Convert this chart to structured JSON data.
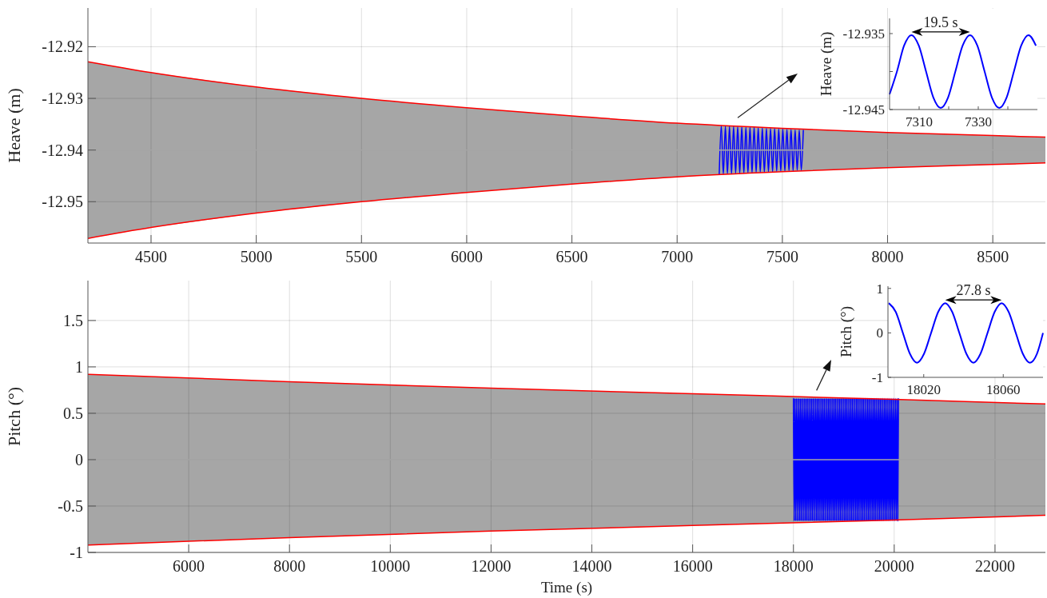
{
  "chart_data": [
    {
      "type": "line",
      "ylabel": "Heave (m)",
      "xlim": [
        4200,
        8750
      ],
      "xticks": [
        4500,
        5000,
        5500,
        6000,
        6500,
        7000,
        7500,
        8000,
        8500
      ],
      "ylim": [
        -12.958,
        -12.9125
      ],
      "yticks": [
        -12.92,
        -12.93,
        -12.94,
        -12.95
      ],
      "grid": true,
      "series": [
        {
          "color": "#a6a6a6",
          "x": [
            4200,
            4500,
            5000,
            5500,
            6000,
            6500,
            7000,
            7500,
            8000,
            8500,
            8750
          ],
          "values": [
            -12.94,
            -12.94,
            -12.94,
            -12.94,
            -12.94,
            -12.94,
            -12.94,
            -12.94,
            -12.94,
            -12.94,
            -12.94
          ],
          "lower": [
            -12.9571,
            -12.955,
            -12.9522,
            -12.95,
            -12.9482,
            -12.9466,
            -12.9452,
            -12.9442,
            -12.9434,
            -12.9428,
            -12.9425
          ],
          "upper": [
            -12.9229,
            -12.925,
            -12.9278,
            -12.93,
            -12.9318,
            -12.9334,
            -12.9348,
            -12.9358,
            -12.9366,
            -12.9372,
            -12.9375
          ]
        },
        {
          "color": "#ff0000",
          "x": [
            4200,
            4500,
            5000,
            5500,
            6000,
            6500,
            7000,
            7500,
            8000,
            8500,
            8750
          ],
          "values": [
            -12.9229,
            -12.925,
            -12.9278,
            -12.93,
            -12.9318,
            -12.9334,
            -12.9348,
            -12.9358,
            -12.9366,
            -12.9372,
            -12.9375
          ]
        },
        {
          "color": "#ff0000",
          "x": [
            4200,
            4500,
            5000,
            5500,
            6000,
            6500,
            7000,
            7500,
            8000,
            8500,
            8750
          ],
          "values": [
            -12.9571,
            -12.955,
            -12.9522,
            -12.95,
            -12.9482,
            -12.9466,
            -12.9452,
            -12.9442,
            -12.9434,
            -12.9428,
            -12.9425
          ]
        },
        {
          "color": "#0000ff",
          "x": [
            7200,
            7209.75,
            7219.5,
            7229.25,
            7239,
            7248.75,
            7258.5,
            7268.25,
            7278,
            7287.75,
            7297.5,
            7307.25,
            7317,
            7326.75,
            7336.5,
            7346.25,
            7356,
            7365.75,
            7375.5,
            7385.25,
            7395,
            7404.75,
            7414.5,
            7424.25,
            7434,
            7443.75,
            7453.5,
            7463.25,
            7473,
            7482.75,
            7492.5,
            7502.25,
            7512,
            7521.75,
            7531.5,
            7541.25,
            7551,
            7560.75,
            7570.5,
            7580.25,
            7590,
            7599.75
          ],
          "values": [
            -12.9447,
            -12.9353,
            -12.9447,
            -12.9354,
            -12.9446,
            -12.9354,
            -12.9446,
            -12.9354,
            -12.9445,
            -12.9355,
            -12.9445,
            -12.9355,
            -12.9445,
            -12.9356,
            -12.9444,
            -12.9356,
            -12.9444,
            -12.9356,
            -12.9443,
            -12.9357,
            -12.9443,
            -12.9357,
            -12.9443,
            -12.9358,
            -12.9442,
            -12.9358,
            -12.9442,
            -12.9358,
            -12.9441,
            -12.9359,
            -12.9441,
            -12.9359,
            -12.9441,
            -12.936,
            -12.944,
            -12.936,
            -12.944,
            -12.9361,
            -12.9439,
            -12.9361,
            -12.9439,
            -12.9361
          ]
        }
      ]
    },
    {
      "type": "line",
      "ylabel": "Heave (m)",
      "xlim": [
        7300,
        7350
      ],
      "xticks": [
        7310,
        {
          "value": 7320,
          "label": null
        },
        7330,
        {
          "value": 7340,
          "label": null
        }
      ],
      "ylim": [
        -12.945,
        -12.933
      ],
      "yticks": [
        -12.935,
        {
          "value": -12.94,
          "label": null
        },
        -12.945
      ],
      "annotations": [
        "19.5 s"
      ],
      "series": [
        {
          "color": "#0000ff",
          "x": [
            7300,
            7302.5,
            7304.9,
            7307.4,
            7309.9,
            7312.35,
            7314.8,
            7317.3,
            7319.8,
            7322.25,
            7324.7,
            7327.2,
            7329.7,
            7332.15,
            7334.6,
            7337.1,
            7339.6,
            7342.05,
            7344.5,
            7347,
            7349.5
          ],
          "values": [
            -12.943,
            -12.94,
            -12.9366,
            -12.9352,
            -12.9366,
            -12.94,
            -12.9434,
            -12.9448,
            -12.9434,
            -12.94,
            -12.9366,
            -12.9352,
            -12.9366,
            -12.94,
            -12.9434,
            -12.9448,
            -12.9434,
            -12.94,
            -12.9366,
            -12.9352,
            -12.9366
          ]
        }
      ]
    },
    {
      "type": "line",
      "xlabel": "Time (s)",
      "ylabel": "Pitch (°)",
      "xlim": [
        4000,
        23000
      ],
      "xticks": [
        6000,
        8000,
        10000,
        12000,
        14000,
        16000,
        18000,
        20000,
        22000
      ],
      "ylim": [
        -1,
        1.93
      ],
      "yticks": [
        -1,
        -0.5,
        0,
        0.5,
        1,
        1.5
      ],
      "grid": true,
      "series": [
        {
          "color": "#a6a6a6",
          "x": [
            4000,
            8000,
            12000,
            16000,
            20000,
            23000
          ],
          "values": [
            0,
            0,
            0,
            0,
            0,
            0
          ],
          "lower": [
            -0.92,
            -0.84,
            -0.77,
            -0.71,
            -0.65,
            -0.6
          ],
          "upper": [
            0.92,
            0.84,
            0.77,
            0.71,
            0.65,
            0.6
          ]
        },
        {
          "color": "#ff0000",
          "x": [
            4000,
            8000,
            12000,
            16000,
            20000,
            23000
          ],
          "values": [
            0.92,
            0.84,
            0.77,
            0.71,
            0.65,
            0.6
          ]
        },
        {
          "color": "#ff0000",
          "x": [
            4000,
            8000,
            12000,
            16000,
            20000,
            23000
          ],
          "values": [
            -0.92,
            -0.84,
            -0.77,
            -0.71,
            -0.65,
            -0.6
          ]
        },
        {
          "color": "#0000ff",
          "x": [
            18000,
            18013.9,
            18027.8,
            18041.7,
            18055.6,
            18069.5,
            18083.4,
            18097.3,
            18111.2,
            18125.1,
            18139,
            18152.9,
            18166.8,
            18180.7,
            18194.6,
            18208.5,
            18222.4,
            18236.3,
            18250.2,
            18264.1,
            18278,
            18291.9,
            18305.8,
            18319.7,
            18333.6,
            18347.5,
            18361.4,
            18375.3,
            18389.2,
            18403.1,
            18417,
            18430.9,
            18444.8,
            18458.7,
            18472.6,
            18486.5,
            18500.4,
            18514.3,
            18528.2,
            18542.1,
            18556,
            18569.9,
            18583.8,
            18597.7,
            18611.6,
            18625.5,
            18639.4,
            18653.3,
            18667.2,
            18681.1,
            18695,
            18708.9,
            18722.8,
            18736.7,
            18750.6,
            18764.5,
            18778.4,
            18792.3,
            18806.2,
            18820.1,
            18834,
            18847.9,
            18861.8,
            18875.7,
            18889.6,
            18903.5,
            18917.4,
            18931.3,
            18945.2,
            18959.1,
            18973,
            18986.9,
            19000.8,
            19014.7,
            19028.6,
            19042.5,
            19056.4,
            19070.3,
            19084.2,
            19098.1,
            19112,
            19125.9,
            19139.8,
            19153.7,
            19167.6,
            19181.5,
            19195.4,
            19209.3,
            19223.2,
            19237.1,
            19251,
            19264.9,
            19278.8,
            19292.7,
            19306.6,
            19320.5,
            19334.4,
            19348.3,
            19362.2,
            19376.1,
            19390,
            19403.9,
            19417.8,
            19431.7,
            19445.6,
            19459.5,
            19473.4,
            19487.3,
            19501.2,
            19515.1,
            19529,
            19542.9,
            19556.8,
            19570.7,
            19584.6,
            19598.5,
            19612.4,
            19626.3,
            19640.2,
            19654.1,
            19668,
            19681.9,
            19695.8,
            19709.7,
            19723.6,
            19737.5,
            19751.4,
            19765.3,
            19779.2,
            19793.1,
            19807,
            19820.9,
            19834.8,
            19848.7,
            19862.6,
            19876.5,
            19890.4,
            19904.3,
            19918.2,
            19932.1,
            19946,
            19959.9,
            19973.8,
            19987.7,
            20001.6,
            20015.5,
            20029.4,
            20043.3,
            20057.2,
            20071.1,
            20085
          ],
          "values": [
            0.66,
            -0.66,
            0.66,
            -0.66,
            0.66,
            -0.66,
            0.66,
            -0.66,
            0.66,
            -0.66,
            0.66,
            -0.66,
            0.66,
            -0.66,
            0.66,
            -0.66,
            0.66,
            -0.66,
            0.66,
            -0.66,
            0.66,
            -0.66,
            0.66,
            -0.66,
            0.66,
            -0.66,
            0.66,
            -0.66,
            0.66,
            -0.66,
            0.66,
            -0.66,
            0.66,
            -0.66,
            0.66,
            -0.66,
            0.66,
            -0.66,
            0.66,
            -0.66,
            0.66,
            -0.66,
            0.66,
            -0.66,
            0.66,
            -0.66,
            0.66,
            -0.66,
            0.66,
            -0.66,
            0.66,
            -0.66,
            0.66,
            -0.66,
            0.66,
            -0.66,
            0.66,
            -0.66,
            0.66,
            -0.66,
            0.66,
            -0.66,
            0.66,
            -0.66,
            0.66,
            -0.66,
            0.66,
            -0.66,
            0.66,
            -0.66,
            0.66,
            -0.66,
            0.66,
            -0.66,
            0.66,
            -0.66,
            0.66,
            -0.66,
            0.66,
            -0.66,
            0.66,
            -0.66,
            0.66,
            -0.66,
            0.66,
            -0.66,
            0.66,
            -0.66,
            0.66,
            -0.66,
            0.66,
            -0.66,
            0.66,
            -0.66,
            0.66,
            -0.66,
            0.66,
            -0.66,
            0.66,
            -0.66,
            0.66,
            -0.66,
            0.66,
            -0.66,
            0.66,
            -0.66,
            0.66,
            -0.66,
            0.66,
            -0.66,
            0.66,
            -0.66,
            0.66,
            -0.66,
            0.66,
            -0.66,
            0.66,
            -0.66,
            0.66,
            -0.66,
            0.66,
            -0.66,
            0.66,
            -0.66,
            0.66,
            -0.66,
            0.66,
            -0.66,
            0.66,
            -0.66,
            0.66,
            -0.66,
            0.66,
            -0.66,
            0.66,
            -0.66,
            0.66,
            -0.66,
            0.66,
            -0.66,
            0.66,
            -0.66,
            0.66,
            -0.66,
            0.66,
            -0.66,
            0.66,
            -0.66,
            0.66,
            -0.66,
            0.66
          ]
        }
      ]
    },
    {
      "type": "line",
      "ylabel": "Pitch (°)",
      "xlim": [
        18002,
        18080
      ],
      "xticks": [
        18020,
        18060
      ],
      "ylim": [
        -1,
        1.05
      ],
      "yticks": [
        -1,
        0,
        1
      ],
      "annotations": [
        "27.8 s"
      ],
      "series": [
        {
          "color": "#0000ff",
          "x": [
            18002.4,
            18005.95,
            18009.5,
            18013.05,
            18016.6,
            18020.15,
            18023.7,
            18027.25,
            18030.8,
            18034.35,
            18037.9,
            18041.45,
            18045,
            18048.55,
            18052.1,
            18055.65,
            18059.2,
            18062.75,
            18066.3,
            18069.85,
            18073.4,
            18076.95,
            18080
          ],
          "values": [
            0.67,
            0.47,
            0,
            -0.47,
            -0.67,
            -0.47,
            0,
            0.47,
            0.67,
            0.47,
            0,
            -0.47,
            -0.67,
            -0.47,
            0,
            0.47,
            0.67,
            0.47,
            0,
            -0.47,
            -0.67,
            -0.47,
            0
          ]
        }
      ]
    }
  ]
}
